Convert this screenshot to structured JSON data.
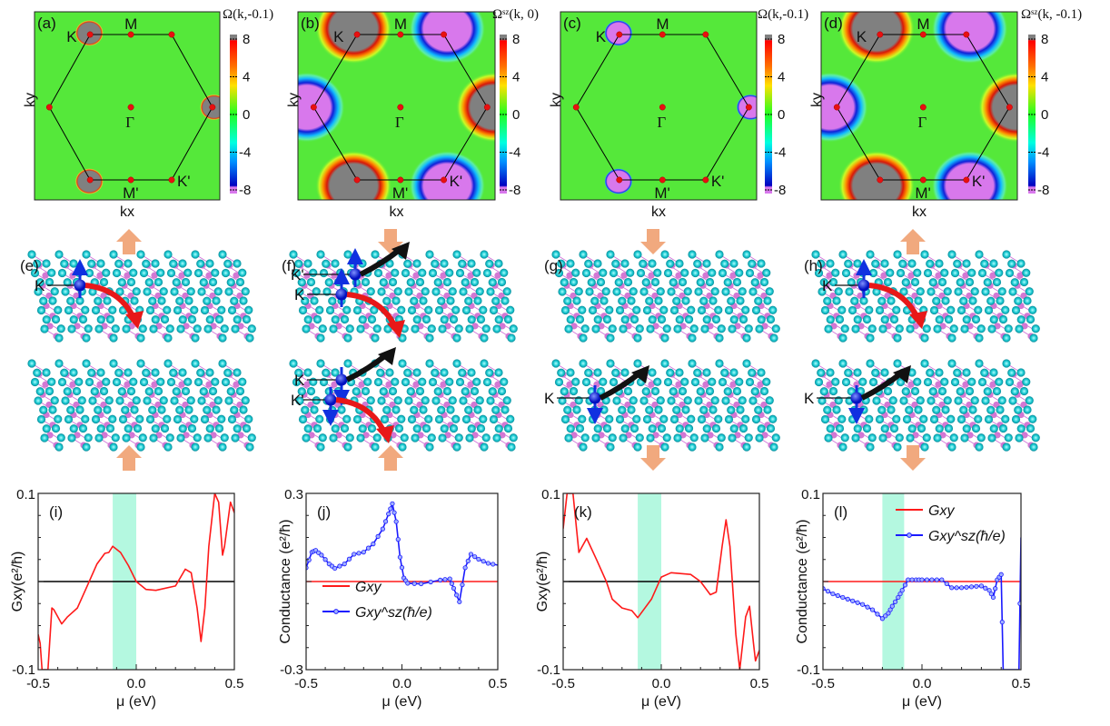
{
  "heatmaps": [
    {
      "panel": "(a)",
      "colorbar_title": "Ω(k,-0.1)",
      "valleys": [
        "+",
        "0",
        "+",
        "0",
        "+",
        "0"
      ],
      "blob_size": "small"
    },
    {
      "panel": "(b)",
      "colorbar_title": "Ωˢᶻ(k, 0)",
      "valleys": [
        "+",
        "-",
        "+",
        "-",
        "+",
        "-"
      ],
      "blob_size": "large"
    },
    {
      "panel": "(c)",
      "colorbar_title": "Ω(k,-0.1)",
      "valleys": [
        "-",
        "0",
        "-",
        "0",
        "-",
        "0"
      ],
      "blob_size": "small"
    },
    {
      "panel": "(d)",
      "colorbar_title": "Ωˢᶻ(k, -0.1)",
      "valleys": [
        "+",
        "-",
        "+",
        "-",
        "+",
        "-"
      ],
      "blob_size": "large"
    }
  ],
  "heatmap_common": {
    "xlabel": "kx",
    "ylabel": "ky",
    "points": {
      "K": "K",
      "M": "M",
      "Gamma": "Γ",
      "K_prime": "K'",
      "M_prime": "M'"
    },
    "colorbar_ticks": [
      "8",
      "4",
      "0",
      "-4",
      "-8"
    ],
    "colorbar_range": [
      -8,
      8
    ],
    "colors": {
      "positive": "#808080",
      "negative": "#d878ec",
      "background": "#55e83a"
    }
  },
  "structures": [
    {
      "panel": "(e)",
      "top_labels": [
        "K"
      ],
      "bottom_labels": [],
      "top_arrow": "up",
      "bottom_arrow": "up"
    },
    {
      "panel": "(f)",
      "top_labels": [
        "K'",
        "K"
      ],
      "bottom_labels": [
        "K",
        "K'"
      ],
      "top_arrow": "down",
      "bottom_arrow": "up"
    },
    {
      "panel": "(g)",
      "top_labels": [],
      "bottom_labels": [
        "K"
      ],
      "top_arrow": "down",
      "bottom_arrow": "down"
    },
    {
      "panel": "(h)",
      "top_labels": [
        "K"
      ],
      "bottom_labels": [
        "K"
      ],
      "top_arrow": "up",
      "bottom_arrow": "down"
    }
  ],
  "chart_data": [
    {
      "type": "line",
      "panel": "(i)",
      "xlabel": "μ (eV)",
      "ylabel": "Gxy(e²/ħ)",
      "xlim": [
        -0.5,
        0.5
      ],
      "ylim": [
        -0.1,
        0.1
      ],
      "xticks": [
        "-0.5",
        "0.0",
        "0.5"
      ],
      "yticks": [
        "0.1",
        "-0.1"
      ],
      "highlight": [
        -0.12,
        0.0
      ],
      "series": [
        {
          "color": "#ff1a1a",
          "markers": false,
          "x": [
            -0.5,
            -0.49,
            -0.48,
            -0.45,
            -0.43,
            -0.42,
            -0.38,
            -0.35,
            -0.3,
            -0.25,
            -0.2,
            -0.16,
            -0.14,
            -0.12,
            -0.08,
            -0.04,
            0,
            0.05,
            0.1,
            0.2,
            0.25,
            0.28,
            0.31,
            0.33,
            0.35,
            0.37,
            0.4,
            0.42,
            0.44,
            0.45,
            0.48,
            0.5
          ],
          "y": [
            -0.06,
            -0.07,
            -0.1,
            -0.1,
            -0.03,
            -0.032,
            -0.048,
            -0.04,
            -0.03,
            -0.005,
            0.02,
            0.032,
            0.033,
            0.04,
            0.033,
            0.018,
            0,
            -0.009,
            -0.01,
            -0.005,
            0.014,
            0.01,
            -0.03,
            -0.068,
            -0.03,
            0.04,
            0.1,
            0.09,
            0.03,
            0.04,
            0.09,
            0.078
          ]
        }
      ],
      "zero_line": true
    },
    {
      "type": "line",
      "panel": "(j)",
      "xlabel": "μ (eV)",
      "ylabel": "Conductance (e²/ħ)",
      "xlim": [
        -0.5,
        0.5
      ],
      "ylim": [
        -0.3,
        0.3
      ],
      "xticks": [
        "-0.5",
        "0.0",
        "0.5"
      ],
      "yticks": [
        "0.3",
        "-0.3"
      ],
      "legend": "lower-left",
      "series": [
        {
          "name": "Gxy",
          "color": "#ff1a1a",
          "markers": false,
          "x": [
            -0.5,
            0.5
          ],
          "y": [
            0,
            0
          ]
        },
        {
          "name": "Gxy^sz(ħ/e)",
          "color": "#1a1aff",
          "markers": true,
          "x": [
            -0.5,
            -0.47,
            -0.45,
            -0.42,
            -0.38,
            -0.35,
            -0.3,
            -0.25,
            -0.2,
            -0.15,
            -0.1,
            -0.07,
            -0.05,
            -0.03,
            -0.01,
            0.01,
            0.03,
            0.1,
            0.2,
            0.25,
            0.27,
            0.3,
            0.33,
            0.36,
            0.4,
            0.45,
            0.5
          ],
          "y": [
            0.047,
            0.1,
            0.106,
            0.09,
            0.06,
            0.045,
            0.06,
            0.093,
            0.1,
            0.128,
            0.179,
            0.23,
            0.265,
            0.204,
            0.083,
            0.012,
            -0.006,
            -0.008,
            0.005,
            0.009,
            -0.023,
            -0.069,
            0.047,
            0.093,
            0.076,
            0.062,
            0.056
          ]
        }
      ]
    },
    {
      "type": "line",
      "panel": "(k)",
      "xlabel": "μ (eV)",
      "ylabel": "Gxy(e²/ħ)",
      "xlim": [
        -0.5,
        0.5
      ],
      "ylim": [
        -0.1,
        0.1
      ],
      "xticks": [
        "-0.5",
        "0.0",
        "0.5"
      ],
      "yticks": [
        "0.1",
        "-0.1"
      ],
      "highlight": [
        -0.12,
        0.0
      ],
      "series": [
        {
          "color": "#ff1a1a",
          "markers": false,
          "x": [
            -0.5,
            -0.48,
            -0.45,
            -0.42,
            -0.38,
            -0.33,
            -0.28,
            -0.25,
            -0.2,
            -0.15,
            -0.12,
            -0.05,
            0,
            0.05,
            0.15,
            0.2,
            0.25,
            0.28,
            0.31,
            0.33,
            0.35,
            0.38,
            0.4,
            0.43,
            0.45,
            0.47,
            0.48,
            0.5
          ],
          "y": [
            0.06,
            0.1,
            0.1,
            0.033,
            0.049,
            0.025,
            0,
            -0.02,
            -0.03,
            -0.033,
            -0.041,
            -0.02,
            0.005,
            0.01,
            0.008,
            0,
            -0.015,
            -0.012,
            0.04,
            0.07,
            0.04,
            -0.06,
            -0.1,
            -0.04,
            -0.028,
            -0.07,
            -0.09,
            -0.078
          ]
        }
      ],
      "zero_line": true
    },
    {
      "type": "line",
      "panel": "(l)",
      "xlabel": "μ (eV)",
      "ylabel": "Conductance (e²/ħ)",
      "xlim": [
        -0.5,
        0.5
      ],
      "ylim": [
        -0.1,
        0.1
      ],
      "xticks": [
        "-0.5",
        "0.0",
        "0.5"
      ],
      "yticks": [
        "0.1",
        "-0.1"
      ],
      "highlight": [
        -0.2,
        -0.09
      ],
      "legend": "upper-right",
      "series": [
        {
          "name": "Gxy",
          "color": "#ff1a1a",
          "markers": false,
          "x": [
            -0.5,
            0.5
          ],
          "y": [
            0,
            0
          ]
        },
        {
          "name": "Gxy^sz(ħ/e)",
          "color": "#1a1aff",
          "markers": true,
          "x": [
            -0.5,
            -0.45,
            -0.4,
            -0.35,
            -0.3,
            -0.25,
            -0.2,
            -0.17,
            -0.15,
            -0.12,
            -0.1,
            -0.07,
            -0.03,
            0,
            0.05,
            0.1,
            0.15,
            0.2,
            0.25,
            0.3,
            0.34,
            0.36,
            0.38,
            0.4,
            0.41,
            0.49,
            0.5
          ],
          "y": [
            -0.008,
            -0.014,
            -0.018,
            -0.022,
            -0.026,
            -0.032,
            -0.042,
            -0.036,
            -0.028,
            -0.018,
            -0.01,
            0.002,
            0.002,
            0.002,
            0.002,
            0.002,
            -0.007,
            -0.007,
            -0.006,
            -0.005,
            -0.01,
            -0.018,
            0.002,
            0.008,
            -0.1,
            -0.1,
            0.05
          ]
        }
      ]
    }
  ],
  "legend_labels": {
    "gxy": "G",
    "gxy_sub": "xy",
    "gs": "G",
    "gs_sup": "sᶻ",
    "gs_sub": "xy",
    "gs_unit": "(ħ/e)"
  },
  "axis_text": {
    "gxy_ylabel_main": "G",
    "gxy_ylabel_sub": "xy",
    "unit": "(e²/ħ)",
    "conductance": "Conductance"
  }
}
